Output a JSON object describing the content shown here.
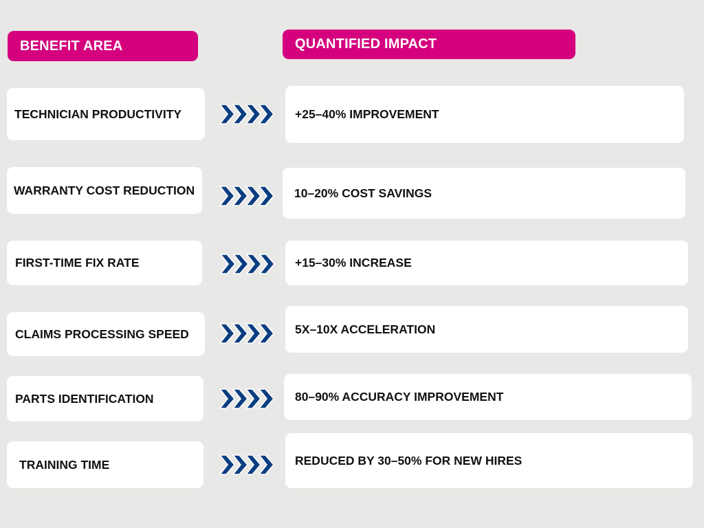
{
  "colors": {
    "background": "#e8e8e6",
    "header": "#d4007e",
    "card": "#ffffff",
    "arrow_fill": "#0b3e80",
    "arrow_outline": "#ffffff"
  },
  "icons": {
    "row_connector": "chevron-arrows-icon"
  },
  "headers": {
    "left": "BENEFIT AREA",
    "right": "QUANTIFIED IMPACT"
  },
  "rows": [
    {
      "benefit": "TECHNICIAN PRODUCTIVITY",
      "impact": "+25–40% IMPROVEMENT"
    },
    {
      "benefit": "WARRANTY COST REDUCTION",
      "impact": "10–20% COST SAVINGS"
    },
    {
      "benefit": "FIRST-TIME FIX RATE",
      "impact": "+15–30% INCREASE"
    },
    {
      "benefit": "CLAIMS PROCESSING SPEED",
      "impact": "5X–10X ACCELERATION"
    },
    {
      "benefit": "PARTS IDENTIFICATION",
      "impact": "80–90% ACCURACY IMPROVEMENT"
    },
    {
      "benefit": "TRAINING TIME",
      "impact": "REDUCED BY 30–50% FOR NEW HIRES"
    }
  ]
}
